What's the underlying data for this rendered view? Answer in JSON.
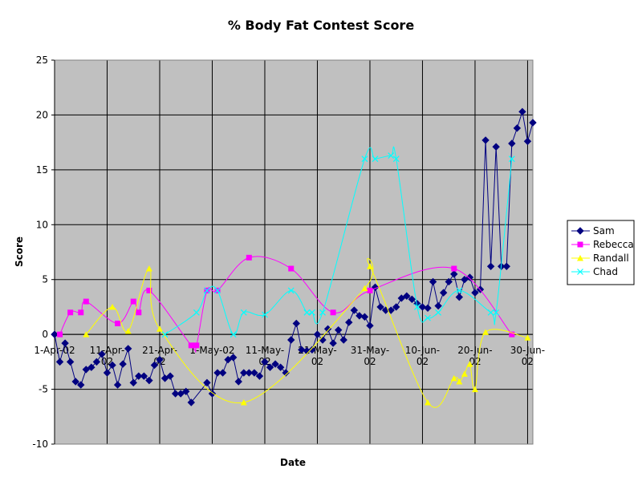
{
  "chart_data": {
    "type": "line",
    "title": "% Body Fat Contest Score",
    "x_label": "Date",
    "y_label": "Score",
    "xlim": [
      "2002-04-01",
      "2002-07-01"
    ],
    "xticks": [
      {
        "value": "2002-04-01",
        "label": "1-Apr-02"
      },
      {
        "value": "2002-04-11",
        "label": "11-Apr-02"
      },
      {
        "value": "2002-04-21",
        "label": "21-Apr-02"
      },
      {
        "value": "2002-05-01",
        "label": "1-May-02"
      },
      {
        "value": "2002-05-11",
        "label": "11-May-02"
      },
      {
        "value": "2002-05-21",
        "label": "21-May-02"
      },
      {
        "value": "2002-05-31",
        "label": "31-May-02"
      },
      {
        "value": "2002-06-10",
        "label": "10-Jun-02"
      },
      {
        "value": "2002-06-20",
        "label": "20-Jun-02"
      },
      {
        "value": "2002-06-30",
        "label": "30-Jun-02"
      }
    ],
    "ylim": [
      -10,
      25
    ],
    "yticks": [
      -10,
      -5,
      0,
      5,
      10,
      15,
      20,
      25
    ],
    "grid": true,
    "legend": "right",
    "series": [
      {
        "name": "Sam",
        "color": "#000080",
        "marker": "diamond",
        "smooth": false,
        "x": [
          "2002-04-01",
          "2002-04-02",
          "2002-04-03",
          "2002-04-04",
          "2002-04-05",
          "2002-04-06",
          "2002-04-07",
          "2002-04-08",
          "2002-04-09",
          "2002-04-10",
          "2002-04-11",
          "2002-04-12",
          "2002-04-13",
          "2002-04-14",
          "2002-04-15",
          "2002-04-16",
          "2002-04-17",
          "2002-04-18",
          "2002-04-19",
          "2002-04-20",
          "2002-04-21",
          "2002-04-22",
          "2002-04-23",
          "2002-04-24",
          "2002-04-25",
          "2002-04-26",
          "2002-04-27",
          "2002-04-30",
          "2002-05-01",
          "2002-05-02",
          "2002-05-03",
          "2002-05-04",
          "2002-05-05",
          "2002-05-06",
          "2002-05-07",
          "2002-05-08",
          "2002-05-09",
          "2002-05-10",
          "2002-05-11",
          "2002-05-12",
          "2002-05-13",
          "2002-05-14",
          "2002-05-15",
          "2002-05-16",
          "2002-05-17",
          "2002-05-18",
          "2002-05-19",
          "2002-05-20",
          "2002-05-21",
          "2002-05-22",
          "2002-05-23",
          "2002-05-24",
          "2002-05-25",
          "2002-05-26",
          "2002-05-27",
          "2002-05-28",
          "2002-05-29",
          "2002-05-30",
          "2002-05-31",
          "2002-06-01",
          "2002-06-02",
          "2002-06-03",
          "2002-06-04",
          "2002-06-05",
          "2002-06-06",
          "2002-06-07",
          "2002-06-08",
          "2002-06-09",
          "2002-06-10",
          "2002-06-11",
          "2002-06-12",
          "2002-06-13",
          "2002-06-14",
          "2002-06-15",
          "2002-06-16",
          "2002-06-17",
          "2002-06-18",
          "2002-06-19",
          "2002-06-20",
          "2002-06-21",
          "2002-06-22",
          "2002-06-23",
          "2002-06-24",
          "2002-06-25",
          "2002-06-26",
          "2002-06-27",
          "2002-06-28",
          "2002-06-29",
          "2002-06-30",
          "2002-07-01"
        ],
        "values": [
          0,
          -2.5,
          -0.8,
          -2.5,
          -4.3,
          -4.6,
          -3.2,
          -3.0,
          -2.5,
          -1.8,
          -3.5,
          -2.8,
          -4.6,
          -2.7,
          -1.3,
          -4.4,
          -3.8,
          -3.8,
          -4.2,
          -2.8,
          -2.3,
          -4.0,
          -3.8,
          -5.4,
          -5.4,
          -5.2,
          -6.2,
          -4.4,
          -5.4,
          -3.5,
          -3.5,
          -2.3,
          -2.1,
          -4.3,
          -3.5,
          -3.5,
          -3.5,
          -3.8,
          -2.5,
          -3.0,
          -2.7,
          -3.0,
          -3.5,
          -0.5,
          1.0,
          -1.4,
          -1.5,
          -1.4,
          0.0,
          -0.5,
          0.5,
          -0.8,
          0.4,
          -0.5,
          1.1,
          2.2,
          1.7,
          1.6,
          0.8,
          4.3,
          2.5,
          2.2,
          2.2,
          2.5,
          3.3,
          3.5,
          3.2,
          2.8,
          2.5,
          2.4,
          4.8,
          2.6,
          3.8,
          4.8,
          5.5,
          3.4,
          5.0,
          5.2,
          3.8,
          4.1,
          17.7,
          6.2,
          17.1,
          6.2,
          6.2,
          17.4,
          18.8,
          20.3,
          17.6,
          19.3
        ]
      },
      {
        "name": "Rebecca",
        "color": "#ff00ff",
        "marker": "square",
        "smooth": true,
        "x": [
          "2002-04-02",
          "2002-04-04",
          "2002-04-06",
          "2002-04-07",
          "2002-04-13",
          "2002-04-16",
          "2002-04-17",
          "2002-04-19",
          "2002-04-27",
          "2002-04-28",
          "2002-04-30",
          "2002-05-02",
          "2002-05-08",
          "2002-05-16",
          "2002-05-24",
          "2002-05-31",
          "2002-06-16",
          "2002-06-27"
        ],
        "values": [
          0,
          2,
          2,
          3,
          1,
          3,
          2,
          4,
          -1,
          -1,
          4,
          4,
          7,
          6,
          2,
          4,
          6,
          0
        ]
      },
      {
        "name": "Randall",
        "color": "#ffff00",
        "marker": "triangle",
        "smooth": true,
        "x": [
          "2002-04-07",
          "2002-04-12",
          "2002-04-15",
          "2002-04-19",
          "2002-04-21",
          "2002-05-07",
          "2002-05-30",
          "2002-05-31",
          "2002-06-11",
          "2002-06-16",
          "2002-06-17",
          "2002-06-18",
          "2002-06-19",
          "2002-06-20",
          "2002-06-22",
          "2002-06-30"
        ],
        "values": [
          0,
          2.5,
          0.3,
          6,
          0.5,
          -6.2,
          4.2,
          6.2,
          -6.2,
          -4,
          -4.3,
          -3.6,
          -2.7,
          -5,
          0.2,
          -0.3
        ]
      },
      {
        "name": "Chad",
        "color": "#00ffff",
        "marker": "x",
        "smooth": true,
        "x": [
          "2002-04-22",
          "2002-04-28",
          "2002-04-30",
          "2002-05-02",
          "2002-05-05",
          "2002-05-07",
          "2002-05-11",
          "2002-05-16",
          "2002-05-19",
          "2002-05-20",
          "2002-05-22",
          "2002-05-30",
          "2002-06-01",
          "2002-06-04",
          "2002-06-05",
          "2002-06-09",
          "2002-06-11",
          "2002-06-13",
          "2002-06-17",
          "2002-06-23",
          "2002-06-24",
          "2002-06-27"
        ],
        "values": [
          0,
          2,
          4,
          4,
          0,
          2,
          1.8,
          4,
          2,
          2,
          2,
          16,
          16,
          16.3,
          16,
          2.5,
          1.5,
          2,
          4,
          2,
          2,
          16
        ]
      }
    ]
  }
}
